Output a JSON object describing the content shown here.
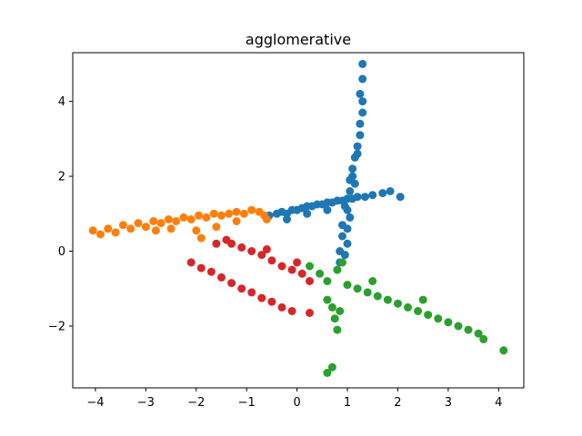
{
  "chart_data": {
    "type": "scatter",
    "title": "agglomerative",
    "xlabel": "",
    "ylabel": "",
    "xlim": [
      -4.45,
      4.5
    ],
    "ylim": [
      -3.65,
      5.3
    ],
    "xticks": [
      -4,
      -3,
      -2,
      -1,
      0,
      1,
      2,
      3,
      4
    ],
    "yticks": [
      -2,
      0,
      2,
      4
    ],
    "xtick_labels": [
      "−4",
      "−3",
      "−2",
      "−1",
      "0",
      "1",
      "2",
      "3",
      "4"
    ],
    "ytick_labels": [
      "−2",
      "0",
      "2",
      "4"
    ],
    "grid": false,
    "legend": false,
    "series": [
      {
        "color": "#1f77b4",
        "points": [
          [
            -0.55,
            0.95
          ],
          [
            -0.4,
            1.0
          ],
          [
            -0.3,
            1.05
          ],
          [
            -0.2,
            1.0
          ],
          [
            -0.1,
            1.1
          ],
          [
            0.0,
            1.1
          ],
          [
            0.1,
            1.15
          ],
          [
            0.2,
            1.2
          ],
          [
            0.3,
            1.2
          ],
          [
            0.4,
            1.25
          ],
          [
            0.5,
            1.25
          ],
          [
            0.6,
            1.3
          ],
          [
            0.7,
            1.3
          ],
          [
            0.8,
            1.35
          ],
          [
            0.9,
            1.35
          ],
          [
            1.0,
            1.4
          ],
          [
            1.1,
            1.4
          ],
          [
            1.2,
            1.45
          ],
          [
            1.35,
            1.45
          ],
          [
            1.5,
            1.5
          ],
          [
            1.7,
            1.55
          ],
          [
            1.85,
            1.6
          ],
          [
            2.05,
            1.45
          ],
          [
            0.95,
            1.2
          ],
          [
            0.6,
            1.1
          ],
          [
            0.2,
            1.0
          ],
          [
            -0.2,
            0.85
          ],
          [
            0.9,
            0.7
          ],
          [
            0.9,
            0.4
          ],
          [
            0.85,
            0.0
          ],
          [
            0.85,
            -0.3
          ],
          [
            0.95,
            -0.1
          ],
          [
            1.0,
            0.2
          ],
          [
            1.0,
            0.6
          ],
          [
            1.05,
            0.9
          ],
          [
            1.0,
            1.1
          ],
          [
            1.05,
            1.6
          ],
          [
            1.05,
            1.9
          ],
          [
            1.1,
            2.2
          ],
          [
            1.15,
            2.5
          ],
          [
            1.2,
            2.8
          ],
          [
            1.25,
            3.1
          ],
          [
            1.25,
            3.4
          ],
          [
            1.3,
            3.7
          ],
          [
            1.3,
            4.0
          ],
          [
            1.25,
            4.2
          ],
          [
            1.3,
            4.6
          ],
          [
            1.3,
            5.0
          ],
          [
            1.1,
            2.0
          ],
          [
            1.2,
            2.6
          ],
          [
            1.15,
            1.8
          ]
        ]
      },
      {
        "color": "#ff7f0e",
        "points": [
          [
            -4.05,
            0.55
          ],
          [
            -3.9,
            0.45
          ],
          [
            -3.75,
            0.6
          ],
          [
            -3.6,
            0.5
          ],
          [
            -3.45,
            0.7
          ],
          [
            -3.3,
            0.6
          ],
          [
            -3.15,
            0.75
          ],
          [
            -3.0,
            0.65
          ],
          [
            -2.85,
            0.8
          ],
          [
            -2.7,
            0.75
          ],
          [
            -2.55,
            0.85
          ],
          [
            -2.4,
            0.8
          ],
          [
            -2.25,
            0.9
          ],
          [
            -2.1,
            0.85
          ],
          [
            -1.95,
            0.95
          ],
          [
            -1.8,
            0.9
          ],
          [
            -1.65,
            1.0
          ],
          [
            -1.5,
            0.95
          ],
          [
            -1.35,
            1.0
          ],
          [
            -1.2,
            1.05
          ],
          [
            -1.05,
            1.0
          ],
          [
            -0.9,
            1.1
          ],
          [
            -0.75,
            1.05
          ],
          [
            -0.65,
            0.95
          ],
          [
            -0.6,
            0.85
          ],
          [
            -2.0,
            0.55
          ],
          [
            -1.6,
            0.65
          ],
          [
            -1.2,
            0.8
          ],
          [
            -2.5,
            0.6
          ],
          [
            -1.9,
            0.35
          ],
          [
            -2.8,
            0.55
          ]
        ]
      },
      {
        "color": "#d62728",
        "points": [
          [
            -2.1,
            -0.3
          ],
          [
            -1.9,
            -0.45
          ],
          [
            -1.7,
            -0.55
          ],
          [
            -1.5,
            -0.7
          ],
          [
            -1.3,
            -0.85
          ],
          [
            -1.1,
            -1.0
          ],
          [
            -0.9,
            -1.1
          ],
          [
            -0.7,
            -1.25
          ],
          [
            -0.5,
            -1.35
          ],
          [
            -0.3,
            -1.5
          ],
          [
            -0.1,
            -1.6
          ],
          [
            0.25,
            -1.65
          ],
          [
            -1.4,
            0.3
          ],
          [
            -1.3,
            0.2
          ],
          [
            -1.1,
            0.1
          ],
          [
            -0.9,
            0.0
          ],
          [
            -0.7,
            -0.1
          ],
          [
            -0.5,
            -0.25
          ],
          [
            -0.3,
            -0.4
          ],
          [
            -0.1,
            -0.5
          ],
          [
            0.1,
            -0.6
          ],
          [
            0.25,
            -0.8
          ],
          [
            -1.6,
            0.2
          ],
          [
            -0.6,
            0.05
          ],
          [
            0.0,
            -0.3
          ]
        ]
      },
      {
        "color": "#2ca02c",
        "points": [
          [
            0.25,
            -0.4
          ],
          [
            0.45,
            -0.6
          ],
          [
            0.6,
            -0.8
          ],
          [
            0.8,
            -0.5
          ],
          [
            0.9,
            -0.3
          ],
          [
            1.0,
            -0.9
          ],
          [
            1.2,
            -1.0
          ],
          [
            1.4,
            -1.1
          ],
          [
            1.6,
            -1.2
          ],
          [
            1.8,
            -1.3
          ],
          [
            2.0,
            -1.4
          ],
          [
            2.2,
            -1.5
          ],
          [
            2.4,
            -1.6
          ],
          [
            2.6,
            -1.7
          ],
          [
            2.8,
            -1.8
          ],
          [
            3.0,
            -1.9
          ],
          [
            3.2,
            -2.0
          ],
          [
            3.4,
            -2.1
          ],
          [
            3.6,
            -2.2
          ],
          [
            3.7,
            -2.35
          ],
          [
            4.1,
            -2.65
          ],
          [
            0.6,
            -1.3
          ],
          [
            0.7,
            -1.5
          ],
          [
            0.75,
            -1.8
          ],
          [
            0.8,
            -2.1
          ],
          [
            0.7,
            -3.1
          ],
          [
            0.6,
            -3.25
          ],
          [
            1.5,
            -0.8
          ],
          [
            2.5,
            -1.3
          ],
          [
            0.85,
            -1.6
          ]
        ]
      }
    ]
  }
}
